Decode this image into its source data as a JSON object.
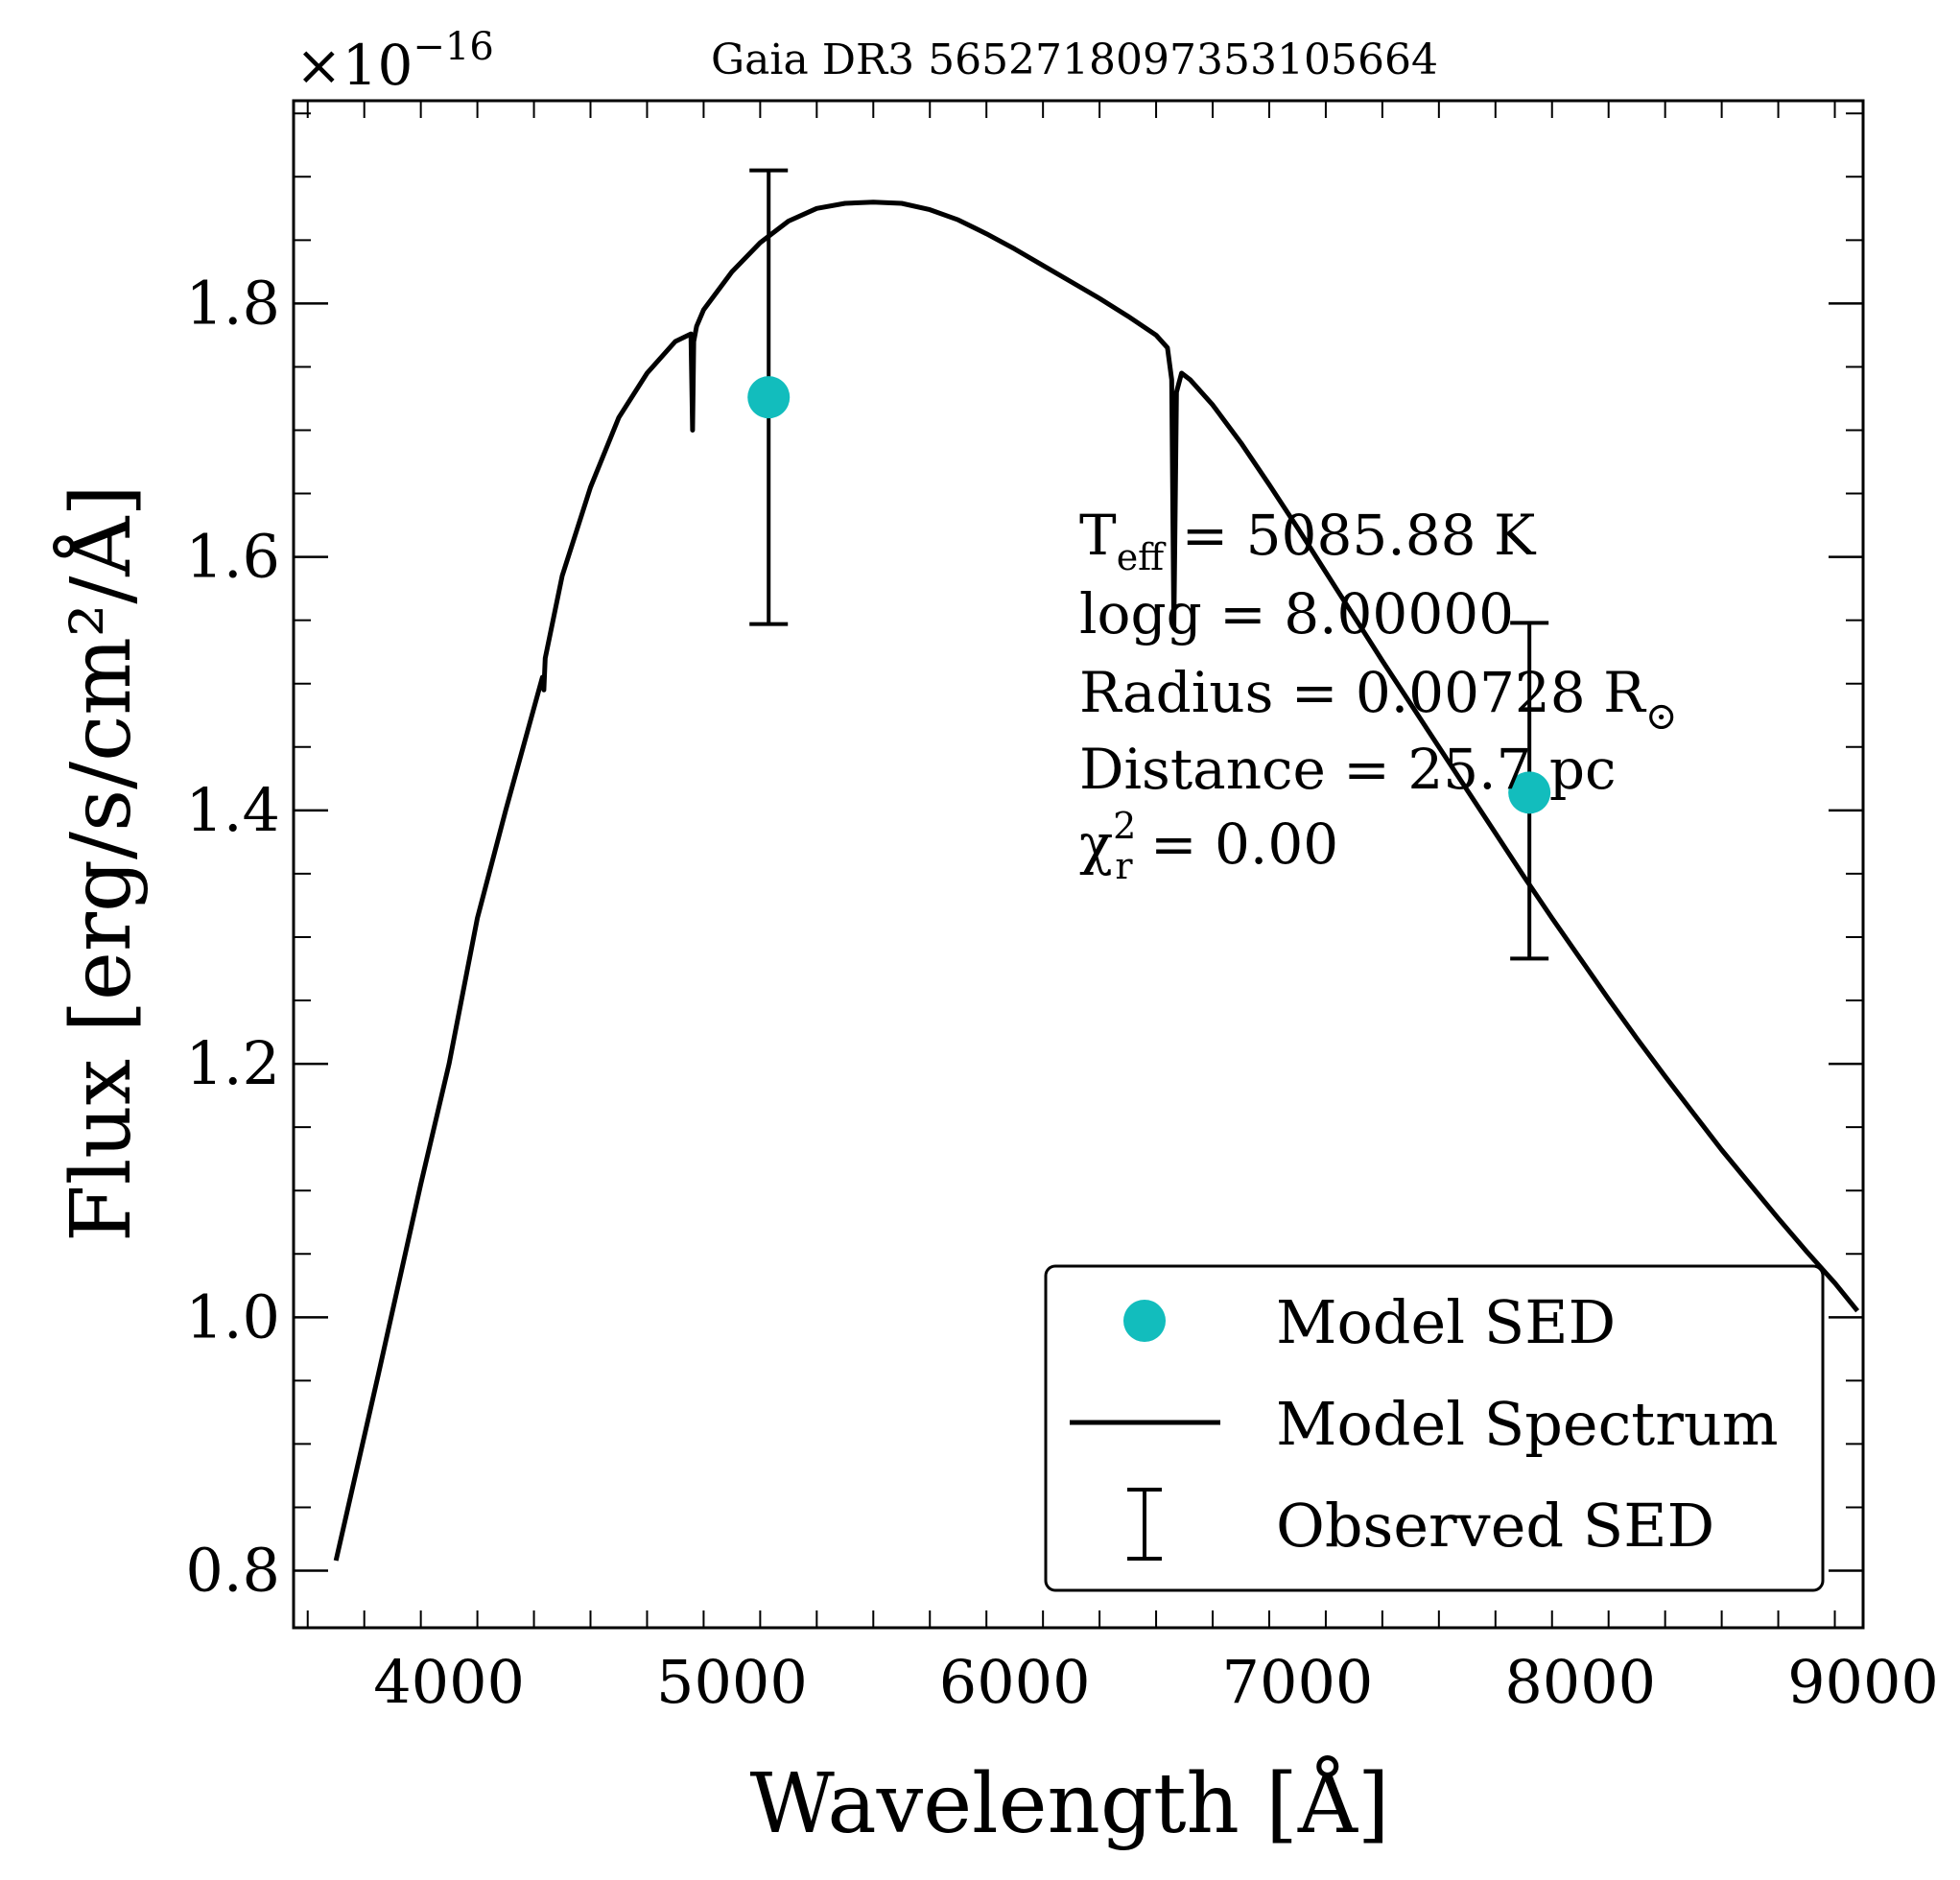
{
  "chart_data": {
    "type": "scatter",
    "title": "Gaia DR3 5652718097353105664",
    "xlabel": "Wavelength [Å]",
    "ylabel": "Flux [erg/s/cm²/Å]",
    "y_scale_label": "×10",
    "y_scale_exponent": "−16",
    "xlim": [
      3450,
      9000
    ],
    "ylim": [
      0.755,
      1.96
    ],
    "x_ticks": [
      4000,
      5000,
      6000,
      7000,
      8000,
      9000
    ],
    "x_tick_labels": [
      "4000",
      "5000",
      "6000",
      "7000",
      "8000",
      "9000"
    ],
    "y_ticks": [
      0.8,
      1.0,
      1.2,
      1.4,
      1.6,
      1.8
    ],
    "y_tick_labels": [
      "0.8",
      "1.0",
      "1.2",
      "1.4",
      "1.6",
      "1.8"
    ],
    "grid": false,
    "legend_position": "bottom-right",
    "series": [
      {
        "name": "Model SED",
        "kind": "points",
        "color": "#12bdbd",
        "x": [
          5130,
          7820
        ],
        "y": [
          1.726,
          1.414
        ]
      },
      {
        "name": "Model Spectrum",
        "kind": "line",
        "color": "#000000",
        "x": [
          3600,
          3750,
          3900,
          4000,
          4100,
          4200,
          4330,
          4335,
          4340,
          4400,
          4500,
          4600,
          4700,
          4800,
          4855,
          4861,
          4865,
          4875,
          4900,
          5000,
          5100,
          5200,
          5300,
          5400,
          5500,
          5600,
          5700,
          5800,
          5900,
          6000,
          6100,
          6200,
          6300,
          6400,
          6500,
          6540,
          6555,
          6563,
          6572,
          6590,
          6620,
          6700,
          6800,
          6900,
          7000,
          7100,
          7200,
          7300,
          7400,
          7500,
          7600,
          7700,
          7800,
          7900,
          8000,
          8100,
          8200,
          8300,
          8400,
          8500,
          8600,
          8700,
          8800,
          8900,
          8980
        ],
        "y": [
          0.808,
          0.955,
          1.105,
          1.2,
          1.315,
          1.4,
          1.505,
          1.495,
          1.52,
          1.585,
          1.655,
          1.71,
          1.745,
          1.77,
          1.776,
          1.7,
          1.77,
          1.782,
          1.795,
          1.825,
          1.848,
          1.865,
          1.875,
          1.879,
          1.88,
          1.879,
          1.874,
          1.866,
          1.855,
          1.843,
          1.83,
          1.817,
          1.804,
          1.79,
          1.775,
          1.765,
          1.74,
          1.545,
          1.73,
          1.745,
          1.74,
          1.72,
          1.69,
          1.657,
          1.623,
          1.588,
          1.553,
          1.518,
          1.484,
          1.45,
          1.416,
          1.382,
          1.348,
          1.315,
          1.283,
          1.251,
          1.22,
          1.19,
          1.161,
          1.132,
          1.105,
          1.078,
          1.052,
          1.027,
          1.005
        ]
      },
      {
        "name": "Observed SED",
        "kind": "errorbar",
        "color": "#000000",
        "x": [
          5130,
          7820
        ],
        "y": [
          1.726,
          1.414
        ],
        "yerr_low": [
          1.547,
          1.283
        ],
        "yerr_high": [
          1.905,
          1.548
        ]
      }
    ],
    "annotations": [
      {
        "text": "T",
        "sub": "eff",
        "rest": " = 5085.88 K"
      },
      {
        "text": "logg = 8.00000"
      },
      {
        "text": "Radius = 0.00728 R",
        "sub": "⊙"
      },
      {
        "text": "Distance = 25.7 pc"
      },
      {
        "text": "χ",
        "sup": "2",
        "sub": "r",
        "rest": " = 0.00"
      }
    ]
  }
}
